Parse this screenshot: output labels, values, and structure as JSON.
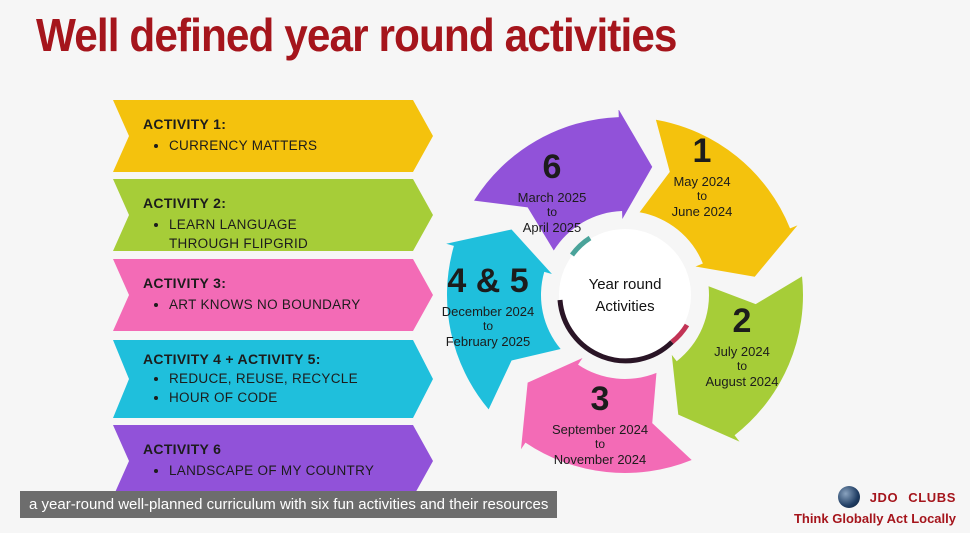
{
  "title": "Well defined year round activities",
  "activities": [
    {
      "head": "ACTIVITY 1:",
      "items": [
        "CURRENCY MATTERS"
      ],
      "color": "#f4c20d"
    },
    {
      "head": "ACTIVITY 2:",
      "items": [
        "LEARN LANGUAGE THROUGH FLIPGRID"
      ],
      "color": "#a6cd38"
    },
    {
      "head": "ACTIVITY 3:",
      "items": [
        "ART KNOWS NO BOUNDARY"
      ],
      "color": "#f36bb6"
    },
    {
      "head": "ACTIVITY 4 + ACTIVITY 5:",
      "items": [
        "REDUCE, REUSE, RECYCLE",
        "HOUR OF CODE"
      ],
      "color": "#1fbfdc"
    },
    {
      "head": "ACTIVITY 6",
      "items": [
        "LANDSCAPE OF MY COUNTRY"
      ],
      "color": "#9152d9"
    }
  ],
  "wheel": {
    "center": [
      "Year round",
      "Activities"
    ],
    "segments": [
      {
        "num": "1",
        "line1": "May 2024",
        "line2": "to",
        "line3": "June 2024",
        "color": "#f4c20d"
      },
      {
        "num": "2",
        "line1": "July 2024",
        "line2": "to",
        "line3": "August 2024",
        "color": "#a6cd38"
      },
      {
        "num": "3",
        "line1": "September 2024",
        "line2": "to",
        "line3": "November 2024",
        "color": "#f36bb6"
      },
      {
        "num": "4 & 5",
        "line1": "December 2024",
        "line2": "to",
        "line3": "February 2025",
        "color": "#1fbfdc"
      },
      {
        "num": "6",
        "line1": "March 2025",
        "line2": "to",
        "line3": "April 2025",
        "color": "#9152d9"
      }
    ]
  },
  "caption": "a year-round well-planned curriculum with six fun activities and their resources",
  "brand": {
    "name_a": "JDO",
    "name_b": "CLUBS",
    "tagline": "Think Globally Act Locally"
  }
}
